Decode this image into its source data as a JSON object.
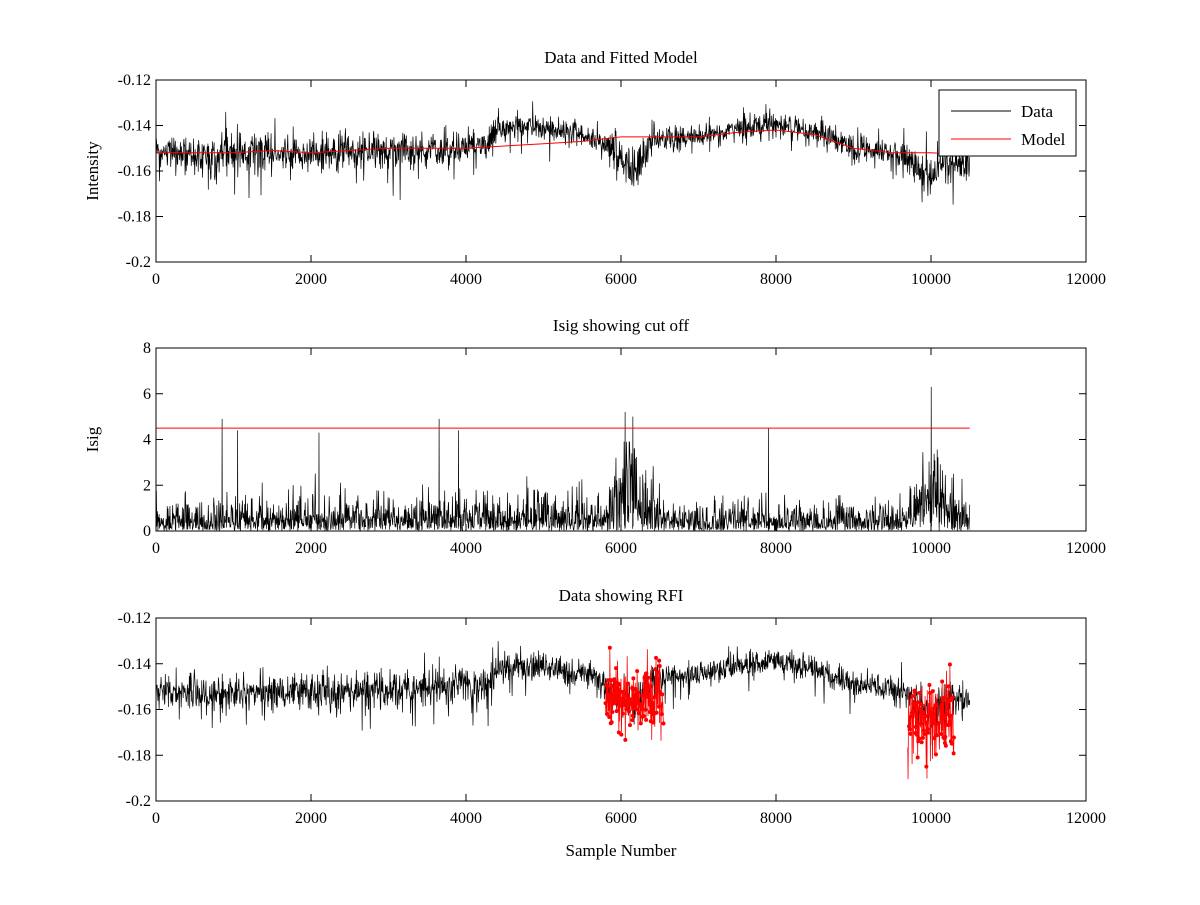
{
  "chart_data": [
    {
      "type": "line",
      "title": "Data and Fitted Model",
      "xlabel": "",
      "ylabel": "Intensity",
      "xlim": [
        0,
        12000
      ],
      "ylim": [
        -0.2,
        -0.12
      ],
      "xticks": [
        0,
        2000,
        4000,
        6000,
        8000,
        10000,
        12000
      ],
      "yticks": [
        -0.12,
        -0.14,
        -0.16,
        -0.18,
        -0.2
      ],
      "xtick_labels": [
        "0",
        "2000",
        "4000",
        "6000",
        "8000",
        "10000",
        "12000"
      ],
      "ytick_labels": [
        "-0.12",
        "-0.14",
        "-0.16",
        "-0.18",
        "-0.2"
      ],
      "grid": false,
      "legend": {
        "placement": "top-right",
        "entries": [
          "Data",
          "Model"
        ]
      },
      "series": [
        {
          "name": "Data",
          "color": "#000000",
          "style": "noisy-line",
          "x_range": [
            0,
            10500
          ],
          "baseline": [
            [
              0,
              -0.152
            ],
            [
              1000,
              -0.153
            ],
            [
              2000,
              -0.152
            ],
            [
              3000,
              -0.151
            ],
            [
              4000,
              -0.15
            ],
            [
              4300,
              -0.149
            ],
            [
              4400,
              -0.141
            ],
            [
              5000,
              -0.141
            ],
            [
              5700,
              -0.146
            ],
            [
              6000,
              -0.155
            ],
            [
              6200,
              -0.158
            ],
            [
              6400,
              -0.146
            ],
            [
              7000,
              -0.145
            ],
            [
              7500,
              -0.141
            ],
            [
              8000,
              -0.139
            ],
            [
              8500,
              -0.143
            ],
            [
              9000,
              -0.149
            ],
            [
              9500,
              -0.151
            ],
            [
              9700,
              -0.154
            ],
            [
              10000,
              -0.163
            ],
            [
              10200,
              -0.156
            ],
            [
              10500,
              -0.156
            ]
          ],
          "spread": [
            [
              0,
              0.006
            ],
            [
              1000,
              0.008
            ],
            [
              3000,
              0.008
            ],
            [
              4000,
              0.008
            ],
            [
              4300,
              0.007
            ],
            [
              4400,
              0.006
            ],
            [
              5600,
              0.005
            ],
            [
              5900,
              0.008
            ],
            [
              6300,
              0.008
            ],
            [
              6500,
              0.005
            ],
            [
              9500,
              0.005
            ],
            [
              9700,
              0.007
            ],
            [
              10100,
              0.009
            ],
            [
              10500,
              0.006
            ]
          ]
        },
        {
          "name": "Model",
          "color": "#ff0000",
          "style": "line",
          "points": [
            [
              0,
              -0.152
            ],
            [
              1000,
              -0.152
            ],
            [
              1500,
              -0.151
            ],
            [
              2000,
              -0.152
            ],
            [
              2500,
              -0.151
            ],
            [
              3000,
              -0.15
            ],
            [
              3500,
              -0.15
            ],
            [
              4000,
              -0.15
            ],
            [
              4500,
              -0.149
            ],
            [
              5000,
              -0.148
            ],
            [
              5500,
              -0.147
            ],
            [
              6000,
              -0.145
            ],
            [
              6500,
              -0.145
            ],
            [
              7000,
              -0.145
            ],
            [
              7500,
              -0.143
            ],
            [
              8000,
              -0.142
            ],
            [
              8500,
              -0.144
            ],
            [
              9000,
              -0.15
            ],
            [
              9500,
              -0.152
            ],
            [
              10000,
              -0.152
            ],
            [
              10500,
              -0.153
            ]
          ]
        }
      ]
    },
    {
      "type": "line",
      "title": "Isig showing cut off",
      "xlabel": "",
      "ylabel": "Isig",
      "xlim": [
        0,
        12000
      ],
      "ylim": [
        0,
        8
      ],
      "xticks": [
        0,
        2000,
        4000,
        6000,
        8000,
        10000,
        12000
      ],
      "yticks": [
        0,
        2,
        4,
        6,
        8
      ],
      "xtick_labels": [
        "0",
        "2000",
        "4000",
        "6000",
        "8000",
        "10000",
        "12000"
      ],
      "ytick_labels": [
        "0",
        "2",
        "4",
        "6",
        "8"
      ],
      "grid": false,
      "series": [
        {
          "color": "#000000",
          "style": "noisy-positive",
          "x_range": [
            0,
            10500
          ],
          "level": [
            [
              0,
              0.8
            ],
            [
              4000,
              1.0
            ],
            [
              5000,
              1.2
            ],
            [
              5800,
              0.9
            ],
            [
              5950,
              1.8
            ],
            [
              6100,
              2.8
            ],
            [
              6300,
              1.6
            ],
            [
              6600,
              0.8
            ],
            [
              9600,
              0.8
            ],
            [
              9900,
              2.0
            ],
            [
              10000,
              3.0
            ],
            [
              10200,
              1.2
            ],
            [
              10500,
              0.7
            ]
          ],
          "peaks": [
            [
              850,
              4.9
            ],
            [
              1050,
              4.4
            ],
            [
              2100,
              4.3
            ],
            [
              3650,
              4.9
            ],
            [
              3900,
              4.4
            ],
            [
              6050,
              5.2
            ],
            [
              6150,
              5.0
            ],
            [
              7900,
              4.5
            ],
            [
              10000,
              6.3
            ]
          ]
        },
        {
          "color": "#ff0000",
          "style": "hline",
          "x_range": [
            0,
            10500
          ],
          "value": 4.5
        }
      ]
    },
    {
      "type": "scatter",
      "title": "Data showing RFI",
      "xlabel": "Sample Number",
      "ylabel": "",
      "xlim": [
        0,
        12000
      ],
      "ylim": [
        -0.2,
        -0.12
      ],
      "xticks": [
        0,
        2000,
        4000,
        6000,
        8000,
        10000,
        12000
      ],
      "yticks": [
        -0.12,
        -0.14,
        -0.16,
        -0.18,
        -0.2
      ],
      "xtick_labels": [
        "0",
        "2000",
        "4000",
        "6000",
        "8000",
        "10000",
        "12000"
      ],
      "ytick_labels": [
        "-0.12",
        "-0.14",
        "-0.16",
        "-0.18",
        "-0.2"
      ],
      "grid": false,
      "series": [
        {
          "color": "#000000",
          "style": "noisy-line",
          "x_range": [
            0,
            10500
          ],
          "baseline": [
            [
              0,
              -0.152
            ],
            [
              1000,
              -0.153
            ],
            [
              2000,
              -0.152
            ],
            [
              3000,
              -0.151
            ],
            [
              4000,
              -0.15
            ],
            [
              4300,
              -0.149
            ],
            [
              4400,
              -0.141
            ],
            [
              5000,
              -0.141
            ],
            [
              5700,
              -0.146
            ],
            [
              6000,
              -0.155
            ],
            [
              6200,
              -0.158
            ],
            [
              6400,
              -0.146
            ],
            [
              7000,
              -0.145
            ],
            [
              7500,
              -0.141
            ],
            [
              8000,
              -0.139
            ],
            [
              8500,
              -0.143
            ],
            [
              9000,
              -0.149
            ],
            [
              9500,
              -0.151
            ],
            [
              9700,
              -0.154
            ],
            [
              10000,
              -0.163
            ],
            [
              10200,
              -0.156
            ],
            [
              10500,
              -0.156
            ]
          ],
          "spread": [
            [
              0,
              0.006
            ],
            [
              1000,
              0.008
            ],
            [
              3000,
              0.008
            ],
            [
              4000,
              0.008
            ],
            [
              4300,
              0.007
            ],
            [
              4400,
              0.006
            ],
            [
              5600,
              0.005
            ],
            [
              5900,
              0.008
            ],
            [
              6300,
              0.008
            ],
            [
              6500,
              0.005
            ],
            [
              9500,
              0.005
            ],
            [
              9700,
              0.007
            ],
            [
              10100,
              0.009
            ],
            [
              10500,
              0.006
            ]
          ]
        },
        {
          "color": "#ff0000",
          "style": "markers",
          "regions": [
            {
              "x_range": [
                5800,
                6550
              ],
              "y_range": [
                -0.178,
                -0.133
              ]
            },
            {
              "x_range": [
                9700,
                10300
              ],
              "y_range": [
                -0.193,
                -0.139
              ]
            }
          ]
        }
      ]
    }
  ]
}
